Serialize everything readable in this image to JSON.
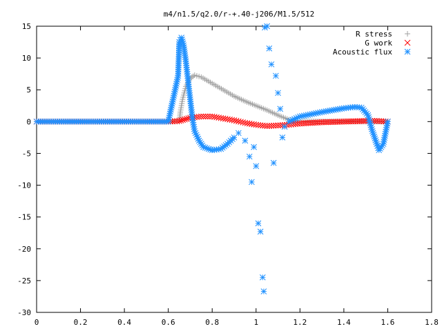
{
  "chart_data": {
    "type": "scatter",
    "title": "m4/n1.5/q2.0/r-+.40-j206/M1.5/512",
    "xlabel": "",
    "ylabel": "",
    "xlim": [
      0,
      1.8
    ],
    "ylim": [
      -30,
      15
    ],
    "x_ticks": [
      0,
      0.2,
      0.4,
      0.6,
      0.8,
      1,
      1.2,
      1.4,
      1.6,
      1.8
    ],
    "x_tick_labels": [
      "0",
      "0.2",
      "0.4",
      "0.6",
      "0.8",
      "1",
      "1.2",
      "1.4",
      "1.6",
      "1.8"
    ],
    "y_ticks": [
      -30,
      -25,
      -20,
      -15,
      -10,
      -5,
      0,
      5,
      10,
      15
    ],
    "y_tick_labels": [
      "-30",
      "-25",
      "-20",
      "-15",
      "-10",
      "-5",
      "0",
      "5",
      "10",
      "15"
    ],
    "grid": false,
    "legend_position": "top-right",
    "series": [
      {
        "name": "R stress",
        "marker": "plus",
        "color": "#a0a0a0",
        "points": [
          [
            0,
            0
          ],
          [
            0.2,
            0
          ],
          [
            0.4,
            0
          ],
          [
            0.6,
            0
          ],
          [
            0.65,
            0
          ],
          [
            0.655,
            1.5
          ],
          [
            0.665,
            3.5
          ],
          [
            0.68,
            5.5
          ],
          [
            0.7,
            6.8
          ],
          [
            0.72,
            7.3
          ],
          [
            0.75,
            7.0
          ],
          [
            0.8,
            6.0
          ],
          [
            0.85,
            5.0
          ],
          [
            0.9,
            4.0
          ],
          [
            0.95,
            3.2
          ],
          [
            1.0,
            2.5
          ],
          [
            1.05,
            1.8
          ],
          [
            1.1,
            1.0
          ],
          [
            1.15,
            0.3
          ],
          [
            1.2,
            0.1
          ],
          [
            1.3,
            0.05
          ],
          [
            1.4,
            0.02
          ],
          [
            1.5,
            0.0
          ],
          [
            1.6,
            0.0
          ]
        ]
      },
      {
        "name": "G work",
        "marker": "cross",
        "color": "#ff0000",
        "points": [
          [
            0,
            0
          ],
          [
            0.2,
            0
          ],
          [
            0.4,
            0
          ],
          [
            0.6,
            0
          ],
          [
            0.65,
            0.1
          ],
          [
            0.7,
            0.6
          ],
          [
            0.75,
            0.8
          ],
          [
            0.8,
            0.8
          ],
          [
            0.85,
            0.5
          ],
          [
            0.9,
            0.2
          ],
          [
            0.95,
            -0.2
          ],
          [
            1.0,
            -0.5
          ],
          [
            1.05,
            -0.7
          ],
          [
            1.1,
            -0.6
          ],
          [
            1.15,
            -0.5
          ],
          [
            1.2,
            -0.3
          ],
          [
            1.3,
            -0.1
          ],
          [
            1.4,
            0.0
          ],
          [
            1.5,
            0.1
          ],
          [
            1.55,
            0.1
          ],
          [
            1.6,
            0.0
          ]
        ]
      },
      {
        "name": "Acoustic flux",
        "marker": "star",
        "color": "#1e90ff",
        "points": [
          [
            0,
            0
          ],
          [
            0.2,
            0
          ],
          [
            0.4,
            0
          ],
          [
            0.6,
            0
          ],
          [
            0.645,
            7.2
          ],
          [
            0.65,
            12.5
          ],
          [
            0.66,
            13.2
          ],
          [
            0.67,
            12.0
          ],
          [
            0.68,
            9.5
          ],
          [
            0.69,
            6.5
          ],
          [
            0.7,
            3.5
          ],
          [
            0.71,
            0.5
          ],
          [
            0.72,
            -1.5
          ],
          [
            0.74,
            -3.0
          ],
          [
            0.76,
            -4.0
          ],
          [
            0.8,
            -4.5
          ],
          [
            0.84,
            -4.3
          ],
          [
            0.87,
            -3.5
          ],
          [
            0.9,
            -2.5
          ],
          [
            0.92,
            -1.8
          ],
          [
            0.95,
            -3.0
          ],
          [
            0.97,
            -5.5
          ],
          [
            0.98,
            -9.5
          ],
          [
            0.99,
            -4.0
          ],
          [
            1.0,
            -7.0
          ],
          [
            1.01,
            -16.0
          ],
          [
            1.02,
            -17.3
          ],
          [
            1.03,
            -24.5
          ],
          [
            1.035,
            -26.7
          ],
          [
            1.04,
            14.8
          ],
          [
            1.05,
            15.0
          ],
          [
            1.06,
            11.5
          ],
          [
            1.07,
            9.0
          ],
          [
            1.08,
            -6.5
          ],
          [
            1.09,
            7.2
          ],
          [
            1.1,
            4.5
          ],
          [
            1.11,
            2.0
          ],
          [
            1.12,
            -2.5
          ],
          [
            1.13,
            -0.8
          ],
          [
            1.15,
            0.0
          ],
          [
            1.2,
            0.8
          ],
          [
            1.3,
            1.5
          ],
          [
            1.4,
            2.1
          ],
          [
            1.45,
            2.3
          ],
          [
            1.48,
            2.2
          ],
          [
            1.51,
            1.0
          ],
          [
            1.53,
            -1.5
          ],
          [
            1.55,
            -3.5
          ],
          [
            1.56,
            -4.5
          ],
          [
            1.58,
            -3.5
          ],
          [
            1.6,
            0.0
          ]
        ]
      }
    ]
  }
}
